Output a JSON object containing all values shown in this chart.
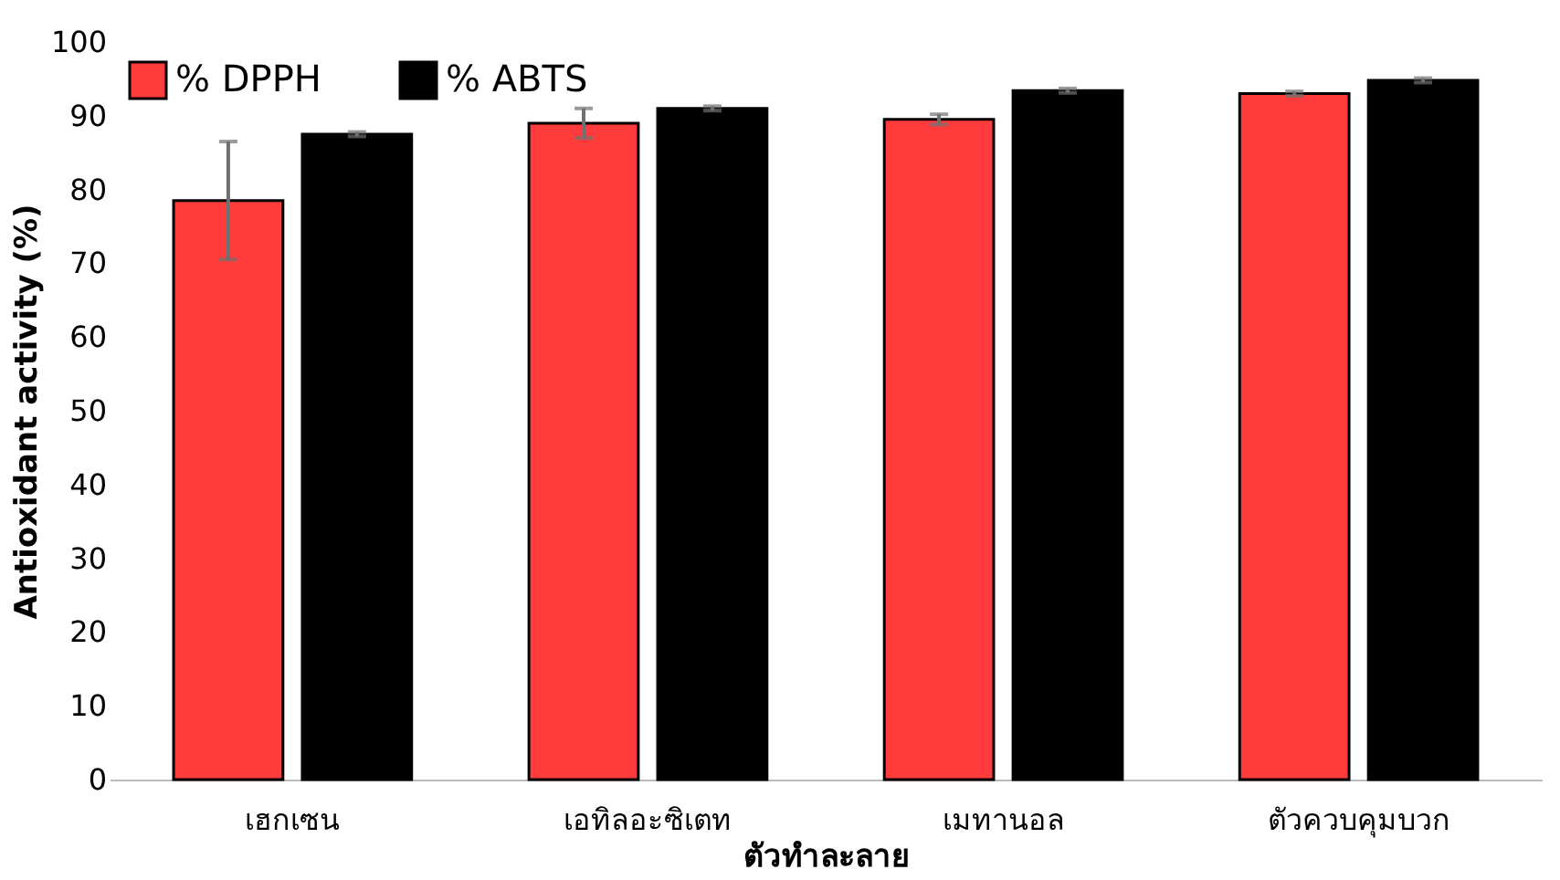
{
  "chart_data": {
    "type": "bar",
    "xlabel": "ตัวทำละลาย",
    "ylabel": "Antioxidant activity (%)",
    "categories": [
      "เฮกเซน",
      "เอทิลอะซิเตท",
      "เมทานอล",
      "ตัวควบคุมบวก"
    ],
    "series": [
      {
        "name": "% DPPH",
        "color": "#ff3b3b",
        "values": [
          78.5,
          89.0,
          89.5,
          93.0
        ],
        "errors": [
          8,
          2,
          0.7,
          0.3
        ]
      },
      {
        "name": "% ABTS",
        "color": "#000000",
        "values": [
          87.5,
          91.0,
          93.4,
          94.8
        ],
        "errors": [
          0.3,
          0.3,
          0.3,
          0.3
        ]
      }
    ],
    "ylim": [
      0,
      100
    ],
    "yticks": [
      0,
      10,
      20,
      30,
      40,
      50,
      60,
      70,
      80,
      90,
      100
    ],
    "grid": false,
    "legend": "top left"
  }
}
